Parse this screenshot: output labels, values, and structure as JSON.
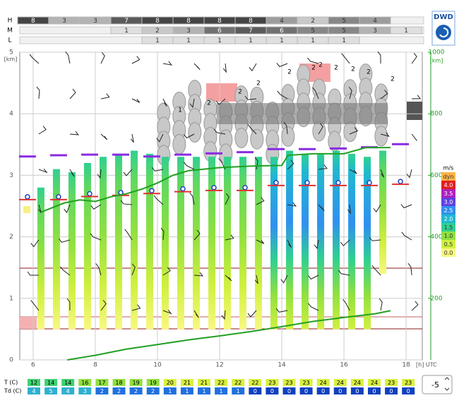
{
  "header": {
    "logo": "DWD",
    "rows": [
      {
        "label": "H",
        "start_hour": 6,
        "cells": [
          8,
          3,
          3,
          7,
          8,
          8,
          8,
          8,
          4,
          2,
          5,
          4
        ]
      },
      {
        "label": "M",
        "start_hour": 9,
        "cells": [
          1,
          2,
          3,
          6,
          7,
          6,
          5,
          5,
          3,
          1
        ]
      },
      {
        "label": "L",
        "start_hour": 10,
        "cells": [
          1,
          1,
          1,
          1,
          1,
          1,
          1
        ]
      }
    ]
  },
  "chart_data": {
    "type": "meteogram",
    "xlim": [
      5.57,
      18.52
    ],
    "xticks": [
      6,
      8,
      10,
      12,
      14,
      16,
      18
    ],
    "x_label": "[h] UTC",
    "ylim": [
      0,
      5
    ],
    "yticks": [
      0,
      1,
      2,
      3,
      4,
      5
    ],
    "y_label": "[km]",
    "y2lim": [
      0,
      1000
    ],
    "y2ticks": [
      200,
      400,
      600,
      800,
      1000
    ],
    "y2_label": "[km]",
    "x": [
      6.25,
      6.75,
      7.25,
      7.75,
      8.25,
      8.75,
      9.25,
      9.75,
      10.25,
      10.75,
      11.25,
      11.75,
      12.25,
      12.75,
      13.25,
      13.75,
      14.25,
      14.75,
      15.25,
      15.75,
      16.25,
      16.75,
      17.25
    ],
    "series": [
      {
        "name": "tops",
        "values": [
          2.8,
          3.1,
          3.05,
          3.2,
          3.3,
          3.35,
          3.4,
          3.35,
          3.3,
          3.3,
          3.3,
          3.3,
          3.3,
          3.3,
          3.3,
          3.3,
          3.4,
          3.35,
          3.35,
          3.4,
          3.35,
          3.3,
          3.4
        ]
      },
      {
        "name": "bases",
        "values": [
          0.5,
          0.5,
          0.5,
          0.5,
          0.5,
          0.5,
          0.5,
          0.5,
          0.5,
          0.5,
          0.5,
          0.5,
          0.5,
          0.5,
          0.5,
          0.5,
          0.5,
          0.5,
          0.5,
          0.5,
          0.5,
          0.5,
          1.4
        ]
      }
    ],
    "markers": {
      "x": [
        6,
        7,
        8,
        9,
        10,
        11,
        12,
        13,
        14,
        15,
        16,
        17,
        18
      ],
      "upper": [
        3.3,
        3.32,
        3.33,
        3.33,
        3.3,
        3.33,
        3.35,
        3.37,
        3.42,
        3.42,
        3.43,
        3.45,
        3.5
      ],
      "lower": [
        2.65,
        2.65,
        2.7,
        2.72,
        2.75,
        2.78,
        2.8,
        2.8,
        2.88,
        2.88,
        2.88,
        2.88,
        2.9
      ]
    },
    "lines": [
      {
        "color": "#22a022",
        "axis": "y2",
        "x": [
          6.25,
          7,
          7.5,
          8,
          8.5,
          9,
          9.5,
          10,
          10.5,
          11,
          12,
          13,
          14,
          14.2,
          15,
          16,
          16.7,
          17.5
        ],
        "values": [
          480,
          510,
          520,
          515,
          530,
          540,
          555,
          575,
          600,
          615,
          625,
          630,
          632,
          665,
          670,
          670,
          690,
          690
        ]
      },
      {
        "color": "#22a022",
        "axis": "y2",
        "x": [
          7.1,
          8,
          9,
          10,
          11,
          12,
          13,
          14,
          15,
          16,
          17,
          17.5
        ],
        "values": [
          0,
          15,
          35,
          50,
          65,
          78,
          92,
          108,
          125,
          138,
          150,
          160
        ]
      }
    ],
    "cloud_labels": [
      "1",
      "2",
      "2",
      "2",
      "2",
      "2",
      "2",
      "2",
      "2",
      "2",
      "2"
    ],
    "legend": {
      "title": "m/s",
      "items": [
        {
          "name": "dyn",
          "color": "#ffb347"
        },
        {
          "name": "4.0",
          "color": "#e02020"
        },
        {
          "name": "3.5",
          "color": "#b020c0"
        },
        {
          "name": "3.0",
          "color": "#6040e0"
        },
        {
          "name": "2.5",
          "color": "#3090f0"
        },
        {
          "name": "2.0",
          "color": "#20b8d0"
        },
        {
          "name": "1.5",
          "color": "#30d090"
        },
        {
          "name": "1.0",
          "color": "#90e040"
        },
        {
          "name": "0.5",
          "color": "#d0f040"
        },
        {
          "name": "0.0",
          "color": "#f8f880"
        }
      ]
    }
  },
  "footer": {
    "t_label": "T (C)",
    "td_label": "Td (C)",
    "t": [
      12,
      14,
      14,
      16,
      17,
      18,
      19,
      19,
      20,
      21,
      21,
      22,
      22,
      22,
      23,
      23,
      23,
      24,
      24,
      24,
      24,
      23,
      23
    ],
    "td": [
      4,
      5,
      4,
      3,
      2,
      2,
      2,
      2,
      1,
      1,
      1,
      1,
      1,
      0,
      0,
      0,
      0,
      0,
      0,
      0,
      0,
      0,
      0
    ],
    "spinner": "-5"
  }
}
